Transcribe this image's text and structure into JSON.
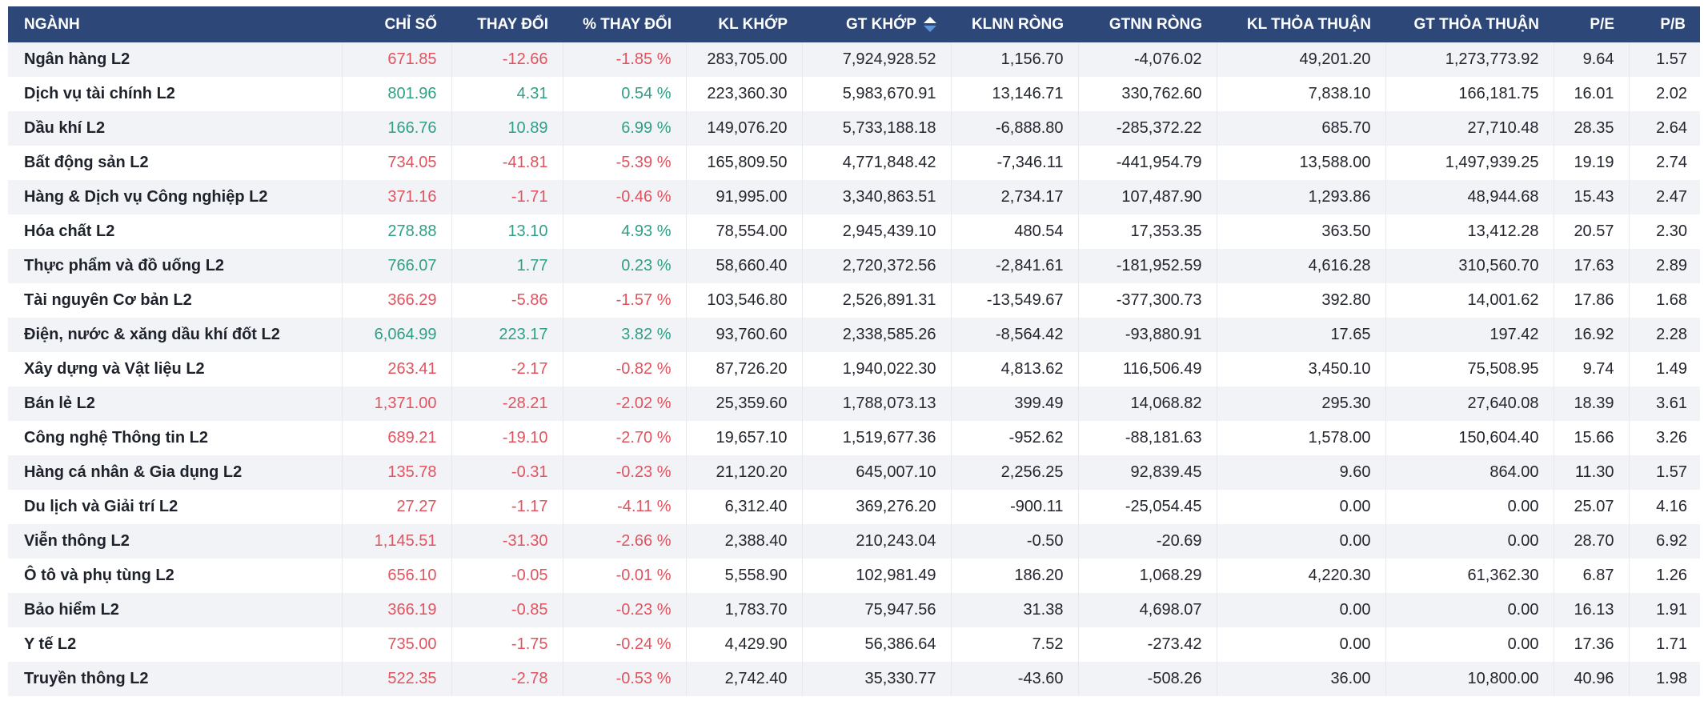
{
  "colors": {
    "header_bg": "#2d4778",
    "header_text": "#ffffff",
    "positive": "#2f9f87",
    "negative": "#e0535f",
    "stripe": "#f1f3f6",
    "divider": "#e6e9ed",
    "text_dark": "#23262e",
    "sort_active": "#ffffff",
    "sort_inactive": "#5c97d9"
  },
  "table": {
    "sorted_column": "gt_khop",
    "columns": [
      {
        "key": "name",
        "label": "NGÀNH",
        "align": "left",
        "colored": false
      },
      {
        "key": "chi_so",
        "label": "CHỈ SỐ",
        "align": "right",
        "colored": true
      },
      {
        "key": "thay_doi",
        "label": "THAY ĐỔI",
        "align": "right",
        "colored": true
      },
      {
        "key": "pct_thay_doi",
        "label": "% THAY ĐỔI",
        "align": "right",
        "colored": true
      },
      {
        "key": "kl_khop",
        "label": "KL KHỚP",
        "align": "right",
        "colored": false
      },
      {
        "key": "gt_khop",
        "label": "GT KHỚP",
        "align": "right",
        "colored": false,
        "sortable": true
      },
      {
        "key": "klnn_rong",
        "label": "KLNN RÒNG",
        "align": "right",
        "colored": false
      },
      {
        "key": "gtnn_rong",
        "label": "GTNN RÒNG",
        "align": "right",
        "colored": false
      },
      {
        "key": "kl_thoa_thuan",
        "label": "KL THỎA THUẬN",
        "align": "right",
        "colored": false
      },
      {
        "key": "gt_thoa_thuan",
        "label": "GT THỎA THUẬN",
        "align": "right",
        "colored": false
      },
      {
        "key": "pe",
        "label": "P/E",
        "align": "right",
        "colored": false
      },
      {
        "key": "pb",
        "label": "P/B",
        "align": "right",
        "colored": false
      }
    ],
    "rows": [
      {
        "name": "Ngân hàng L2",
        "trend": "down",
        "chi_so": "671.85",
        "thay_doi": "-12.66",
        "pct_thay_doi": "-1.85 %",
        "kl_khop": "283,705.00",
        "gt_khop": "7,924,928.52",
        "klnn_rong": "1,156.70",
        "gtnn_rong": "-4,076.02",
        "kl_thoa_thuan": "49,201.20",
        "gt_thoa_thuan": "1,273,773.92",
        "pe": "9.64",
        "pb": "1.57"
      },
      {
        "name": "Dịch vụ tài chính L2",
        "trend": "up",
        "chi_so": "801.96",
        "thay_doi": "4.31",
        "pct_thay_doi": "0.54 %",
        "kl_khop": "223,360.30",
        "gt_khop": "5,983,670.91",
        "klnn_rong": "13,146.71",
        "gtnn_rong": "330,762.60",
        "kl_thoa_thuan": "7,838.10",
        "gt_thoa_thuan": "166,181.75",
        "pe": "16.01",
        "pb": "2.02"
      },
      {
        "name": "Dầu khí L2",
        "trend": "up",
        "chi_so": "166.76",
        "thay_doi": "10.89",
        "pct_thay_doi": "6.99 %",
        "kl_khop": "149,076.20",
        "gt_khop": "5,733,188.18",
        "klnn_rong": "-6,888.80",
        "gtnn_rong": "-285,372.22",
        "kl_thoa_thuan": "685.70",
        "gt_thoa_thuan": "27,710.48",
        "pe": "28.35",
        "pb": "2.64"
      },
      {
        "name": "Bất động sản L2",
        "trend": "down",
        "chi_so": "734.05",
        "thay_doi": "-41.81",
        "pct_thay_doi": "-5.39 %",
        "kl_khop": "165,809.50",
        "gt_khop": "4,771,848.42",
        "klnn_rong": "-7,346.11",
        "gtnn_rong": "-441,954.79",
        "kl_thoa_thuan": "13,588.00",
        "gt_thoa_thuan": "1,497,939.25",
        "pe": "19.19",
        "pb": "2.74"
      },
      {
        "name": "Hàng & Dịch vụ Công nghiệp L2",
        "trend": "down",
        "chi_so": "371.16",
        "thay_doi": "-1.71",
        "pct_thay_doi": "-0.46 %",
        "kl_khop": "91,995.00",
        "gt_khop": "3,340,863.51",
        "klnn_rong": "2,734.17",
        "gtnn_rong": "107,487.90",
        "kl_thoa_thuan": "1,293.86",
        "gt_thoa_thuan": "48,944.68",
        "pe": "15.43",
        "pb": "2.47"
      },
      {
        "name": "Hóa chất L2",
        "trend": "up",
        "chi_so": "278.88",
        "thay_doi": "13.10",
        "pct_thay_doi": "4.93 %",
        "kl_khop": "78,554.00",
        "gt_khop": "2,945,439.10",
        "klnn_rong": "480.54",
        "gtnn_rong": "17,353.35",
        "kl_thoa_thuan": "363.50",
        "gt_thoa_thuan": "13,412.28",
        "pe": "20.57",
        "pb": "2.30"
      },
      {
        "name": "Thực phẩm và đồ uống L2",
        "trend": "up",
        "chi_so": "766.07",
        "thay_doi": "1.77",
        "pct_thay_doi": "0.23 %",
        "kl_khop": "58,660.40",
        "gt_khop": "2,720,372.56",
        "klnn_rong": "-2,841.61",
        "gtnn_rong": "-181,952.59",
        "kl_thoa_thuan": "4,616.28",
        "gt_thoa_thuan": "310,560.70",
        "pe": "17.63",
        "pb": "2.89"
      },
      {
        "name": "Tài nguyên Cơ bản L2",
        "trend": "down",
        "chi_so": "366.29",
        "thay_doi": "-5.86",
        "pct_thay_doi": "-1.57 %",
        "kl_khop": "103,546.80",
        "gt_khop": "2,526,891.31",
        "klnn_rong": "-13,549.67",
        "gtnn_rong": "-377,300.73",
        "kl_thoa_thuan": "392.80",
        "gt_thoa_thuan": "14,001.62",
        "pe": "17.86",
        "pb": "1.68"
      },
      {
        "name": "Điện, nước & xăng dầu khí đốt L2",
        "trend": "up",
        "chi_so": "6,064.99",
        "thay_doi": "223.17",
        "pct_thay_doi": "3.82 %",
        "kl_khop": "93,760.60",
        "gt_khop": "2,338,585.26",
        "klnn_rong": "-8,564.42",
        "gtnn_rong": "-93,880.91",
        "kl_thoa_thuan": "17.65",
        "gt_thoa_thuan": "197.42",
        "pe": "16.92",
        "pb": "2.28"
      },
      {
        "name": "Xây dựng và Vật liệu L2",
        "trend": "down",
        "chi_so": "263.41",
        "thay_doi": "-2.17",
        "pct_thay_doi": "-0.82 %",
        "kl_khop": "87,726.20",
        "gt_khop": "1,940,022.30",
        "klnn_rong": "4,813.62",
        "gtnn_rong": "116,506.49",
        "kl_thoa_thuan": "3,450.10",
        "gt_thoa_thuan": "75,508.95",
        "pe": "9.74",
        "pb": "1.49"
      },
      {
        "name": "Bán lẻ L2",
        "trend": "down",
        "chi_so": "1,371.00",
        "thay_doi": "-28.21",
        "pct_thay_doi": "-2.02 %",
        "kl_khop": "25,359.60",
        "gt_khop": "1,788,073.13",
        "klnn_rong": "399.49",
        "gtnn_rong": "14,068.82",
        "kl_thoa_thuan": "295.30",
        "gt_thoa_thuan": "27,640.08",
        "pe": "18.39",
        "pb": "3.61"
      },
      {
        "name": "Công nghệ Thông tin L2",
        "trend": "down",
        "chi_so": "689.21",
        "thay_doi": "-19.10",
        "pct_thay_doi": "-2.70 %",
        "kl_khop": "19,657.10",
        "gt_khop": "1,519,677.36",
        "klnn_rong": "-952.62",
        "gtnn_rong": "-88,181.63",
        "kl_thoa_thuan": "1,578.00",
        "gt_thoa_thuan": "150,604.40",
        "pe": "15.66",
        "pb": "3.26"
      },
      {
        "name": "Hàng cá nhân & Gia dụng L2",
        "trend": "down",
        "chi_so": "135.78",
        "thay_doi": "-0.31",
        "pct_thay_doi": "-0.23 %",
        "kl_khop": "21,120.20",
        "gt_khop": "645,007.10",
        "klnn_rong": "2,256.25",
        "gtnn_rong": "92,839.45",
        "kl_thoa_thuan": "9.60",
        "gt_thoa_thuan": "864.00",
        "pe": "11.30",
        "pb": "1.57"
      },
      {
        "name": "Du lịch và Giải trí L2",
        "trend": "down",
        "chi_so": "27.27",
        "thay_doi": "-1.17",
        "pct_thay_doi": "-4.11 %",
        "kl_khop": "6,312.40",
        "gt_khop": "369,276.20",
        "klnn_rong": "-900.11",
        "gtnn_rong": "-25,054.45",
        "kl_thoa_thuan": "0.00",
        "gt_thoa_thuan": "0.00",
        "pe": "25.07",
        "pb": "4.16"
      },
      {
        "name": "Viễn thông L2",
        "trend": "down",
        "chi_so": "1,145.51",
        "thay_doi": "-31.30",
        "pct_thay_doi": "-2.66 %",
        "kl_khop": "2,388.40",
        "gt_khop": "210,243.04",
        "klnn_rong": "-0.50",
        "gtnn_rong": "-20.69",
        "kl_thoa_thuan": "0.00",
        "gt_thoa_thuan": "0.00",
        "pe": "28.70",
        "pb": "6.92"
      },
      {
        "name": "Ô tô và phụ tùng L2",
        "trend": "down",
        "chi_so": "656.10",
        "thay_doi": "-0.05",
        "pct_thay_doi": "-0.01 %",
        "kl_khop": "5,558.90",
        "gt_khop": "102,981.49",
        "klnn_rong": "186.20",
        "gtnn_rong": "1,068.29",
        "kl_thoa_thuan": "4,220.30",
        "gt_thoa_thuan": "61,362.30",
        "pe": "6.87",
        "pb": "1.26"
      },
      {
        "name": "Bảo hiểm L2",
        "trend": "down",
        "chi_so": "366.19",
        "thay_doi": "-0.85",
        "pct_thay_doi": "-0.23 %",
        "kl_khop": "1,783.70",
        "gt_khop": "75,947.56",
        "klnn_rong": "31.38",
        "gtnn_rong": "4,698.07",
        "kl_thoa_thuan": "0.00",
        "gt_thoa_thuan": "0.00",
        "pe": "16.13",
        "pb": "1.91"
      },
      {
        "name": "Y tế L2",
        "trend": "down",
        "chi_so": "735.00",
        "thay_doi": "-1.75",
        "pct_thay_doi": "-0.24 %",
        "kl_khop": "4,429.90",
        "gt_khop": "56,386.64",
        "klnn_rong": "7.52",
        "gtnn_rong": "-273.42",
        "kl_thoa_thuan": "0.00",
        "gt_thoa_thuan": "0.00",
        "pe": "17.36",
        "pb": "1.71"
      },
      {
        "name": "Truyền thông L2",
        "trend": "down",
        "chi_so": "522.35",
        "thay_doi": "-2.78",
        "pct_thay_doi": "-0.53 %",
        "kl_khop": "2,742.40",
        "gt_khop": "35,330.77",
        "klnn_rong": "-43.60",
        "gtnn_rong": "-508.26",
        "kl_thoa_thuan": "36.00",
        "gt_thoa_thuan": "10,800.00",
        "pe": "40.96",
        "pb": "1.98"
      }
    ]
  }
}
